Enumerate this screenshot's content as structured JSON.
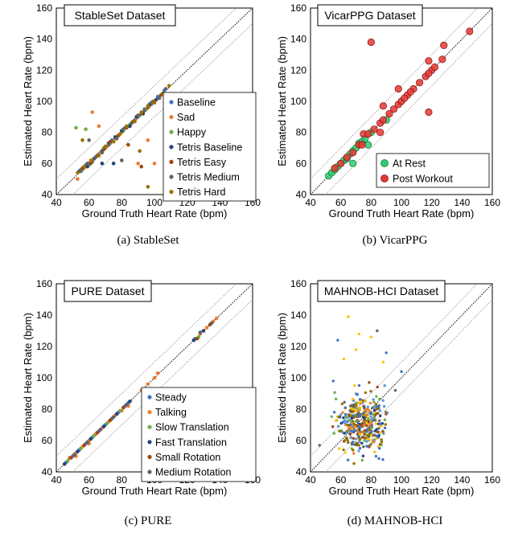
{
  "chart_data": [
    {
      "type": "scatter",
      "id": "a",
      "title": "StableSet Dataset",
      "caption": "(a) StableSet",
      "xlabel": "Ground Truth Heart Rate (bpm)",
      "ylabel": "Estimated Heart Rate (bpm)",
      "xlim": [
        40,
        160
      ],
      "ylim": [
        40,
        160
      ],
      "xticks": [
        40,
        60,
        80,
        100,
        120,
        140,
        160
      ],
      "yticks": [
        40,
        60,
        80,
        100,
        120,
        140,
        160
      ],
      "legend_position": "bottom-right",
      "series": [
        {
          "name": "Baseline",
          "color": "#4472c4",
          "points": [
            [
              55,
              56
            ],
            [
              58,
              59
            ],
            [
              62,
              61
            ],
            [
              66,
              66
            ],
            [
              70,
              70
            ],
            [
              74,
              75
            ],
            [
              78,
              78
            ],
            [
              82,
              83
            ],
            [
              86,
              86
            ],
            [
              90,
              90
            ],
            [
              94,
              95
            ],
            [
              98,
              98
            ],
            [
              102,
              103
            ],
            [
              106,
              107
            ],
            [
              60,
              60
            ],
            [
              72,
              72
            ],
            [
              88,
              88
            ]
          ]
        },
        {
          "name": "Sad",
          "color": "#ed7d31",
          "points": [
            [
              53,
              50
            ],
            [
              57,
              57
            ],
            [
              61,
              62
            ],
            [
              67,
              67
            ],
            [
              71,
              71
            ],
            [
              76,
              76
            ],
            [
              80,
              80
            ],
            [
              84,
              84
            ],
            [
              89,
              89
            ],
            [
              93,
              93
            ],
            [
              97,
              97
            ],
            [
              62,
              93
            ],
            [
              90,
              60
            ],
            [
              100,
              60
            ],
            [
              66,
              84
            ],
            [
              96,
              75
            ]
          ]
        },
        {
          "name": "Happy",
          "color": "#70ad47",
          "points": [
            [
              52,
              83
            ],
            [
              56,
              56
            ],
            [
              60,
              59
            ],
            [
              64,
              64
            ],
            [
              69,
              70
            ],
            [
              73,
              73
            ],
            [
              77,
              77
            ],
            [
              81,
              81
            ],
            [
              85,
              85
            ],
            [
              91,
              91
            ],
            [
              95,
              95
            ],
            [
              99,
              100
            ],
            [
              58,
              82
            ]
          ]
        },
        {
          "name": "Tetris Baseline",
          "color": "#264478",
          "points": [
            [
              54,
              55
            ],
            [
              59,
              58
            ],
            [
              63,
              63
            ],
            [
              68,
              68
            ],
            [
              72,
              73
            ],
            [
              76,
              77
            ],
            [
              80,
              81
            ],
            [
              85,
              84
            ],
            [
              89,
              90
            ],
            [
              93,
              92
            ],
            [
              97,
              98
            ],
            [
              101,
              101
            ],
            [
              75,
              60
            ],
            [
              68,
              60
            ]
          ]
        },
        {
          "name": "Tetris Easy",
          "color": "#9e480e",
          "points": [
            [
              56,
              57
            ],
            [
              61,
              60
            ],
            [
              65,
              65
            ],
            [
              69,
              69
            ],
            [
              73,
              74
            ],
            [
              78,
              78
            ],
            [
              83,
              83
            ],
            [
              87,
              87
            ],
            [
              92,
              92
            ],
            [
              96,
              96
            ],
            [
              100,
              100
            ],
            [
              104,
              104
            ],
            [
              92,
              58
            ],
            [
              84,
              72
            ]
          ]
        },
        {
          "name": "Tetris Medium",
          "color": "#636363",
          "points": [
            [
              55,
              55
            ],
            [
              59,
              60
            ],
            [
              64,
              64
            ],
            [
              68,
              67
            ],
            [
              72,
              72
            ],
            [
              77,
              76
            ],
            [
              81,
              82
            ],
            [
              86,
              86
            ],
            [
              90,
              91
            ],
            [
              94,
              94
            ],
            [
              98,
              99
            ],
            [
              103,
              102
            ],
            [
              107,
              108
            ],
            [
              60,
              75
            ],
            [
              80,
              62
            ]
          ]
        },
        {
          "name": "Tetris Hard",
          "color": "#997300",
          "points": [
            [
              53,
              54
            ],
            [
              57,
              58
            ],
            [
              62,
              62
            ],
            [
              66,
              65
            ],
            [
              70,
              71
            ],
            [
              75,
              74
            ],
            [
              79,
              79
            ],
            [
              83,
              84
            ],
            [
              88,
              87
            ],
            [
              92,
              93
            ],
            [
              96,
              97
            ],
            [
              100,
              99
            ],
            [
              105,
              105
            ],
            [
              109,
              110
            ],
            [
              96,
              45
            ],
            [
              91,
              68
            ],
            [
              56,
              75
            ]
          ]
        }
      ]
    },
    {
      "type": "scatter",
      "id": "b",
      "title": "VicarPPG Dataset",
      "caption": "(b) VicarPPG",
      "xlabel": "Ground Truth Heart Rate (bpm)",
      "ylabel": "Estimated Heart Rate (bpm)",
      "xlim": [
        40,
        160
      ],
      "ylim": [
        40,
        160
      ],
      "xticks": [
        40,
        60,
        80,
        100,
        120,
        140,
        160
      ],
      "yticks": [
        40,
        60,
        80,
        100,
        120,
        140,
        160
      ],
      "legend_position": "bottom-right",
      "series": [
        {
          "name": "At Rest",
          "color": "#2ecc71",
          "edge": "#1e7a3c",
          "points": [
            [
              52,
              52
            ],
            [
              54,
              54
            ],
            [
              56,
              56
            ],
            [
              58,
              58
            ],
            [
              60,
              60
            ],
            [
              62,
              62
            ],
            [
              64,
              63
            ],
            [
              66,
              66
            ],
            [
              68,
              68
            ],
            [
              70,
              70
            ],
            [
              72,
              73
            ],
            [
              74,
              74
            ],
            [
              76,
              76
            ],
            [
              78,
              72
            ],
            [
              90,
              88
            ],
            [
              68,
              60
            ],
            [
              80,
              80
            ]
          ]
        },
        {
          "name": "Post Workout",
          "color": "#e53935",
          "edge": "#8b1a1a",
          "points": [
            [
              56,
              57
            ],
            [
              60,
              60
            ],
            [
              64,
              64
            ],
            [
              68,
              67
            ],
            [
              72,
              72
            ],
            [
              75,
              79
            ],
            [
              78,
              79
            ],
            [
              82,
              82
            ],
            [
              86,
              86
            ],
            [
              88,
              88
            ],
            [
              92,
              92
            ],
            [
              95,
              95
            ],
            [
              98,
              98
            ],
            [
              100,
              100
            ],
            [
              104,
              104
            ],
            [
              108,
              108
            ],
            [
              112,
              112
            ],
            [
              116,
              116
            ],
            [
              120,
              120
            ],
            [
              122,
              122
            ],
            [
              127,
              127
            ],
            [
              145,
              145
            ],
            [
              80,
              138
            ],
            [
              98,
              108
            ],
            [
              88,
              97
            ],
            [
              118,
              93
            ],
            [
              128,
              136
            ],
            [
              118,
              126
            ],
            [
              102,
              102
            ],
            [
              106,
              106
            ],
            [
              118,
              118
            ],
            [
              86,
              80
            ],
            [
              74,
              72
            ]
          ]
        }
      ]
    },
    {
      "type": "scatter",
      "id": "c",
      "title": "PURE Dataset",
      "caption": "(c) PURE",
      "xlabel": "Ground Truth Heart Rate (bpm)",
      "ylabel": "Estimated Heart Rate (bpm)",
      "xlim": [
        40,
        160
      ],
      "ylim": [
        40,
        160
      ],
      "xticks": [
        40,
        60,
        80,
        100,
        120,
        140,
        160
      ],
      "yticks": [
        40,
        60,
        80,
        100,
        120,
        140,
        160
      ],
      "legend_position": "bottom-right",
      "series": [
        {
          "name": "Steady",
          "color": "#4472c4",
          "points": [
            [
              46,
              46
            ],
            [
              50,
              50
            ],
            [
              54,
              54
            ],
            [
              58,
              58
            ],
            [
              62,
              62
            ],
            [
              66,
              66
            ],
            [
              70,
              70
            ],
            [
              74,
              74
            ],
            [
              78,
              78
            ],
            [
              82,
              82
            ],
            [
              84,
              84
            ],
            [
              125,
              125
            ]
          ]
        },
        {
          "name": "Talking",
          "color": "#ed7d31",
          "points": [
            [
              48,
              49
            ],
            [
              52,
              52
            ],
            [
              56,
              56
            ],
            [
              60,
              60
            ],
            [
              64,
              64
            ],
            [
              68,
              68
            ],
            [
              72,
              72
            ],
            [
              76,
              76
            ],
            [
              80,
              79
            ],
            [
              84,
              82
            ],
            [
              92,
              92
            ],
            [
              96,
              96
            ],
            [
              100,
              100
            ],
            [
              102,
              103
            ],
            [
              128,
              128
            ],
            [
              132,
              132
            ],
            [
              136,
              136
            ],
            [
              138,
              138
            ],
            [
              60,
              58
            ],
            [
              52,
              50
            ]
          ]
        },
        {
          "name": "Slow Translation",
          "color": "#70ad47",
          "points": [
            [
              47,
              47
            ],
            [
              55,
              55
            ],
            [
              63,
              63
            ],
            [
              71,
              71
            ],
            [
              79,
              79
            ],
            [
              127,
              126
            ]
          ]
        },
        {
          "name": "Fast Translation",
          "color": "#264478",
          "points": [
            [
              45,
              45
            ],
            [
              53,
              53
            ],
            [
              61,
              61
            ],
            [
              69,
              69
            ],
            [
              77,
              77
            ],
            [
              85,
              85
            ],
            [
              124,
              124
            ],
            [
              130,
              130
            ]
          ]
        },
        {
          "name": "Small Rotation",
          "color": "#9e480e",
          "points": [
            [
              49,
              49
            ],
            [
              57,
              57
            ],
            [
              65,
              65
            ],
            [
              73,
              73
            ],
            [
              81,
              81
            ],
            [
              134,
              134
            ],
            [
              126,
              125
            ]
          ]
        },
        {
          "name": "Medium Rotation",
          "color": "#636363",
          "points": [
            [
              51,
              51
            ],
            [
              59,
              59
            ],
            [
              67,
              67
            ],
            [
              75,
              75
            ],
            [
              83,
              83
            ],
            [
              128,
              129
            ],
            [
              135,
              135
            ]
          ]
        }
      ]
    },
    {
      "type": "scatter",
      "id": "d",
      "title": "MAHNOB-HCI Dataset",
      "caption": "(d) MAHNOB-HCI",
      "xlabel": "Ground Truth Heart Rate (bpm)",
      "ylabel": "Estimated Heart Rate (bpm)",
      "xlim": [
        40,
        160
      ],
      "ylim": [
        40,
        160
      ],
      "xticks": [
        40,
        60,
        80,
        100,
        120,
        140,
        160
      ],
      "yticks": [
        40,
        60,
        80,
        100,
        120,
        140,
        160
      ],
      "legend_position": "none",
      "cloud": {
        "x_range": [
          50,
          100
        ],
        "y_range": [
          42,
          100
        ],
        "count": 380,
        "seed": 7,
        "colors": [
          "#4472c4",
          "#ed7d31",
          "#70ad47",
          "#264478",
          "#9e480e",
          "#636363",
          "#997300",
          "#ffc000",
          "#5b9bd5"
        ]
      },
      "series": [
        {
          "name": "",
          "color": "#ffc000",
          "points": [
            [
              65,
              139
            ],
            [
              72,
              128
            ],
            [
              80,
              126
            ],
            [
              62,
              112
            ],
            [
              88,
              110
            ],
            [
              70,
              118
            ]
          ]
        },
        {
          "name": "",
          "color": "#4472c4",
          "points": [
            [
              58,
              124
            ],
            [
              90,
              116
            ],
            [
              55,
              98
            ],
            [
              100,
              104
            ]
          ]
        },
        {
          "name": "",
          "color": "#636363",
          "points": [
            [
              84,
              130
            ],
            [
              46,
              57
            ],
            [
              96,
              92
            ]
          ]
        }
      ]
    }
  ]
}
